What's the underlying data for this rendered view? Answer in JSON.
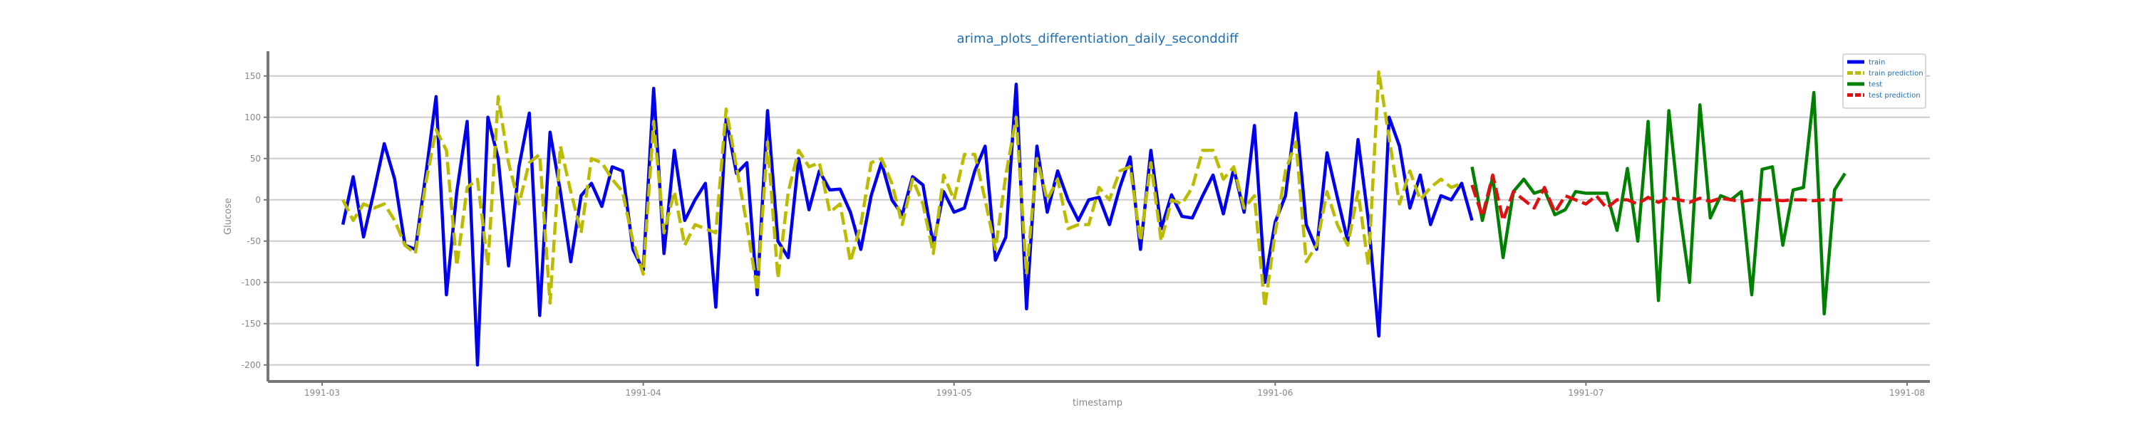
{
  "chart_data": {
    "type": "line",
    "title": "arima_plots_differentiation_daily_seconddiff",
    "xlabel": "timestamp",
    "ylabel": "Glucose",
    "ylim": [
      -220,
      180
    ],
    "xlim": [
      0,
      155
    ],
    "grid": "horizontal",
    "legend_position": "top-right",
    "yticks": [
      150,
      100,
      50,
      0,
      -50,
      -100,
      -150,
      -200
    ],
    "xticks": [
      {
        "label": "1991-03",
        "day": 0
      },
      {
        "label": "1991-04",
        "day": 31
      },
      {
        "label": "1991-05",
        "day": 61
      },
      {
        "label": "1991-06",
        "day": 92
      },
      {
        "label": "1991-07",
        "day": 122
      },
      {
        "label": "1991-08",
        "day": 153
      }
    ],
    "series": [
      {
        "name": "train",
        "color": "#0000ee",
        "style": "solid",
        "x_start": 2,
        "values": [
          -30,
          28,
          -45,
          10,
          68,
          25,
          -55,
          -60,
          30,
          125,
          -115,
          10,
          95,
          -200,
          100,
          50,
          -80,
          40,
          105,
          -140,
          82,
          10,
          -75,
          5,
          20,
          -8,
          40,
          35,
          -60,
          -85,
          135,
          -65,
          60,
          -25,
          0,
          20,
          -130,
          98,
          32,
          45,
          -115,
          108,
          -50,
          -70,
          50,
          -12,
          35,
          12,
          13,
          -15,
          -60,
          5,
          45,
          0,
          -18,
          28,
          18,
          -55,
          10,
          -15,
          -10,
          35,
          65,
          -73,
          -45,
          140,
          -132,
          65,
          -15,
          35,
          0,
          -25,
          0,
          3,
          -30,
          15,
          52,
          -60,
          60,
          -35,
          6,
          -20,
          -22,
          5,
          30,
          -17,
          38,
          -15,
          90,
          -100,
          -27,
          5,
          105,
          -30,
          -60,
          57,
          3,
          -50,
          73,
          -25,
          -165,
          100,
          65,
          -10,
          30,
          -30,
          5,
          0,
          20,
          -25
        ]
      },
      {
        "name": "train prediction",
        "color": "#bbbb00",
        "style": "dashed",
        "x_start": 2,
        "values": [
          0,
          -25,
          -5,
          -10,
          -5,
          -25,
          -55,
          -65,
          20,
          85,
          60,
          -80,
          15,
          25,
          -80,
          125,
          45,
          -5,
          45,
          55,
          -125,
          65,
          10,
          -40,
          50,
          45,
          25,
          10,
          -50,
          -90,
          95,
          -40,
          10,
          -55,
          -30,
          -35,
          -40,
          110,
          40,
          -30,
          -110,
          70,
          -95,
          10,
          60,
          40,
          45,
          -15,
          -5,
          -75,
          -30,
          45,
          50,
          20,
          -30,
          25,
          -5,
          -65,
          30,
          0,
          55,
          55,
          0,
          -60,
          30,
          100,
          -90,
          50,
          0,
          25,
          -35,
          -30,
          -30,
          15,
          0,
          35,
          40,
          -50,
          45,
          -50,
          0,
          -5,
          15,
          60,
          60,
          25,
          40,
          -10,
          5,
          -130,
          -40,
          35,
          70,
          -75,
          -55,
          10,
          -30,
          -55,
          10,
          -80,
          155,
          75,
          -5,
          35,
          0,
          15,
          25,
          15,
          20
        ]
      },
      {
        "name": "test",
        "color": "#008000",
        "style": "solid",
        "x_start": 111,
        "values": [
          40,
          -25,
          28,
          -70,
          10,
          25,
          8,
          12,
          -18,
          -12,
          10,
          8,
          8,
          8,
          -37,
          38,
          -50,
          95,
          -122,
          108,
          -10,
          -100,
          115,
          -22,
          5,
          0,
          10,
          -115,
          37,
          40,
          -55,
          12,
          15,
          130,
          -138,
          12,
          32
        ]
      },
      {
        "name": "test prediction",
        "color": "#dd1111",
        "style": "dashed",
        "x_start": 111,
        "values": [
          18,
          -20,
          30,
          -25,
          10,
          0,
          -10,
          15,
          -15,
          5,
          0,
          -5,
          5,
          -10,
          0,
          0,
          -5,
          3,
          -3,
          3,
          0,
          -3,
          2,
          -2,
          2,
          0,
          -2,
          0,
          0,
          0,
          -1,
          0,
          0,
          -1,
          0,
          0,
          0
        ]
      }
    ]
  }
}
